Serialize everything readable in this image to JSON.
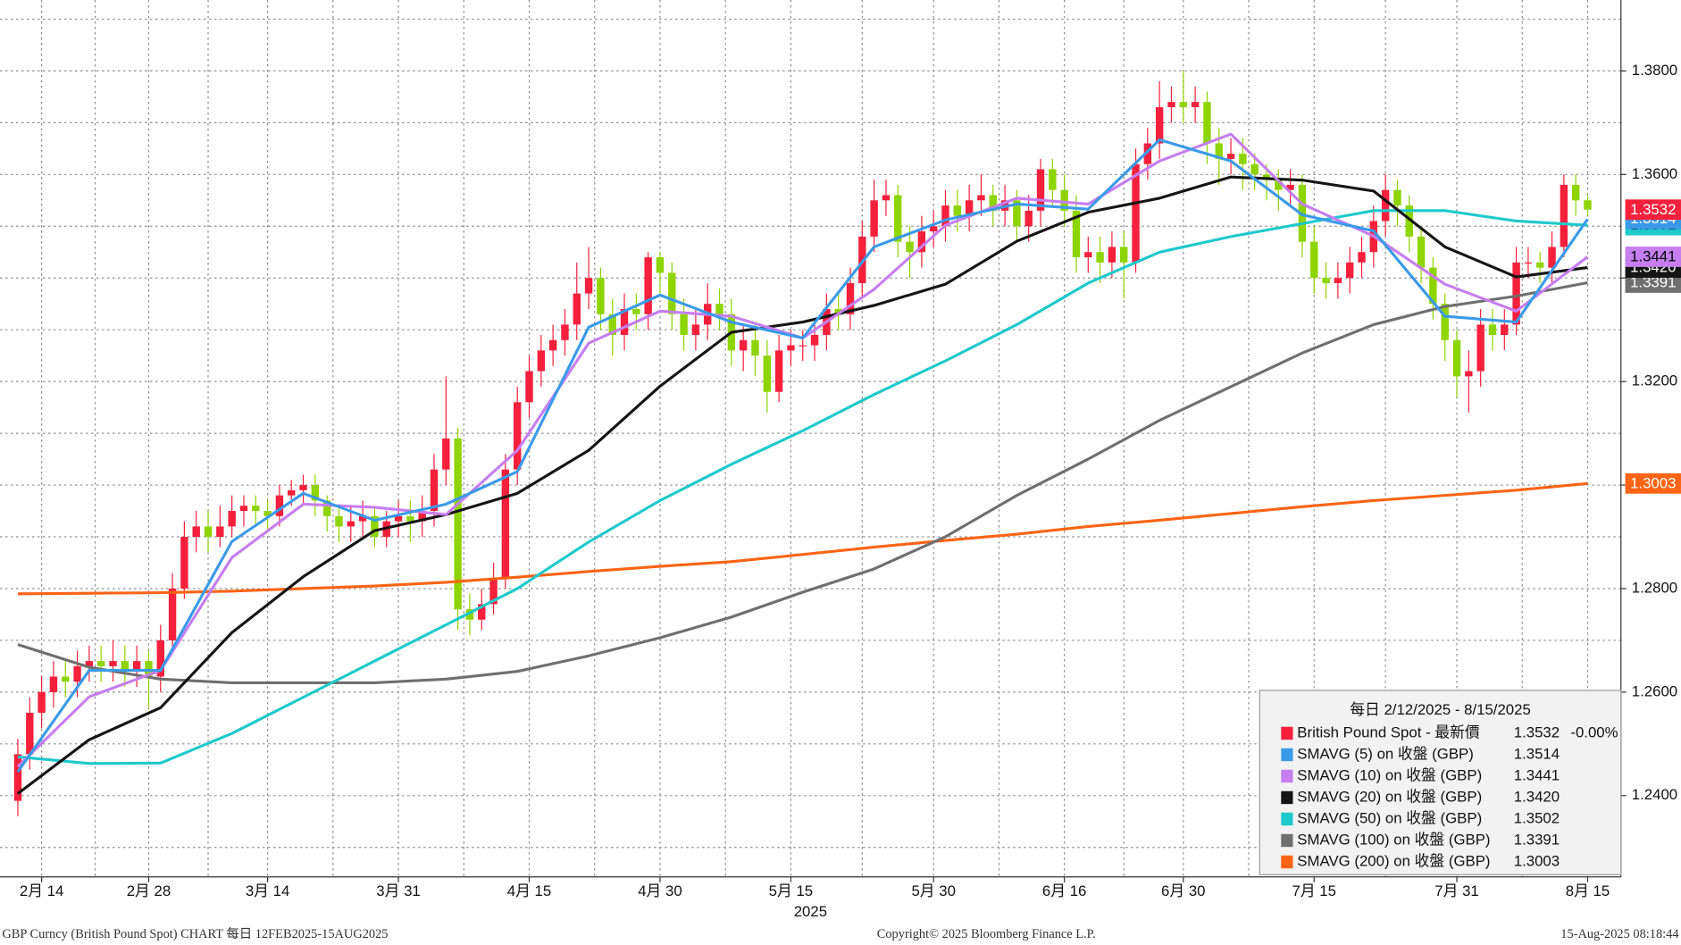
{
  "chart_data": {
    "type": "candlestick",
    "xlim": [
      -1.5,
      134.8
    ],
    "ylim": [
      1.2243,
      1.3937
    ],
    "yticks": [
      {
        "value": 1.24,
        "label": "1.2400"
      },
      {
        "value": 1.26,
        "label": "1.2600"
      },
      {
        "value": 1.28,
        "label": "1.2800"
      },
      {
        "value": 1.3,
        "label": "1.3000"
      },
      {
        "value": 1.32,
        "label": "1.3200"
      },
      {
        "value": 1.34,
        "label": "1.3400"
      },
      {
        "value": 1.36,
        "label": "1.3600"
      },
      {
        "value": 1.38,
        "label": "1.3800"
      }
    ],
    "xticks": [
      {
        "value": 2,
        "label": "2月 14"
      },
      {
        "value": 11,
        "label": "2月 28"
      },
      {
        "value": 21,
        "label": "3月 14"
      },
      {
        "value": 32,
        "label": "3月 31"
      },
      {
        "value": 43,
        "label": "4月 15"
      },
      {
        "value": 54,
        "label": "4月 30"
      },
      {
        "value": 65,
        "label": "5月 15"
      },
      {
        "value": 77,
        "label": "5月 30"
      },
      {
        "value": 88,
        "label": "6月 16"
      },
      {
        "value": 98,
        "label": "6月 30"
      },
      {
        "value": 109,
        "label": "7月 15"
      },
      {
        "value": 121,
        "label": "7月 31"
      },
      {
        "value": 132,
        "label": "8月 15"
      }
    ],
    "xlabel": "2025",
    "grid": true,
    "legend": "lower right",
    "legend_title": "每日 2/12/2025 - 8/15/2025",
    "footer_left": "GBP Curncy (British Pound Spot) CHART  每日 12FEB2025-15AUG2025",
    "footer_center": "Copyright© 2025 Bloomberg Finance L.P.",
    "footer_right": "15-Aug-2025 08:18:44",
    "candles": {
      "name": "British Pound Spot - 最新價",
      "change": "-0.00%",
      "up_color": "#f4203c",
      "down_color": "#8ed400",
      "ohlc": [
        [
          1.239,
          1.251,
          1.236,
          1.248
        ],
        [
          1.248,
          1.259,
          1.245,
          1.256
        ],
        [
          1.256,
          1.263,
          1.253,
          1.26
        ],
        [
          1.26,
          1.266,
          1.257,
          1.263
        ],
        [
          1.263,
          1.266,
          1.259,
          1.262
        ],
        [
          1.262,
          1.268,
          1.259,
          1.265
        ],
        [
          1.265,
          1.269,
          1.262,
          1.266
        ],
        [
          1.266,
          1.269,
          1.262,
          1.265
        ],
        [
          1.265,
          1.27,
          1.262,
          1.266
        ],
        [
          1.266,
          1.269,
          1.261,
          1.264
        ],
        [
          1.264,
          1.269,
          1.261,
          1.266
        ],
        [
          1.266,
          1.268,
          1.257,
          1.263
        ],
        [
          1.263,
          1.273,
          1.26,
          1.27
        ],
        [
          1.27,
          1.283,
          1.268,
          1.28
        ],
        [
          1.28,
          1.293,
          1.278,
          1.29
        ],
        [
          1.29,
          1.295,
          1.287,
          1.292
        ],
        [
          1.292,
          1.295,
          1.287,
          1.29
        ],
        [
          1.29,
          1.296,
          1.288,
          1.292
        ],
        [
          1.292,
          1.298,
          1.29,
          1.295
        ],
        [
          1.295,
          1.298,
          1.292,
          1.296
        ],
        [
          1.296,
          1.298,
          1.292,
          1.295
        ],
        [
          1.295,
          1.297,
          1.291,
          1.294
        ],
        [
          1.294,
          1.3,
          1.292,
          1.298
        ],
        [
          1.298,
          1.301,
          1.296,
          1.299
        ],
        [
          1.299,
          1.302,
          1.296,
          1.3
        ],
        [
          1.3,
          1.302,
          1.294,
          1.297
        ],
        [
          1.297,
          1.298,
          1.291,
          1.294
        ],
        [
          1.294,
          1.296,
          1.289,
          1.292
        ],
        [
          1.292,
          1.296,
          1.289,
          1.293
        ],
        [
          1.293,
          1.297,
          1.29,
          1.294
        ],
        [
          1.294,
          1.296,
          1.288,
          1.29
        ],
        [
          1.29,
          1.295,
          1.288,
          1.293
        ],
        [
          1.293,
          1.297,
          1.29,
          1.294
        ],
        [
          1.294,
          1.297,
          1.289,
          1.293
        ],
        [
          1.293,
          1.298,
          1.29,
          1.295
        ],
        [
          1.295,
          1.306,
          1.292,
          1.303
        ],
        [
          1.303,
          1.321,
          1.3,
          1.309
        ],
        [
          1.309,
          1.311,
          1.272,
          1.276
        ],
        [
          1.276,
          1.279,
          1.271,
          1.274
        ],
        [
          1.274,
          1.28,
          1.272,
          1.277
        ],
        [
          1.277,
          1.285,
          1.275,
          1.282
        ],
        [
          1.282,
          1.306,
          1.28,
          1.303
        ],
        [
          1.303,
          1.319,
          1.3,
          1.316
        ],
        [
          1.316,
          1.325,
          1.313,
          1.322
        ],
        [
          1.322,
          1.329,
          1.319,
          1.326
        ],
        [
          1.326,
          1.331,
          1.323,
          1.328
        ],
        [
          1.328,
          1.334,
          1.325,
          1.331
        ],
        [
          1.331,
          1.343,
          1.328,
          1.337
        ],
        [
          1.337,
          1.346,
          1.334,
          1.34
        ],
        [
          1.34,
          1.342,
          1.33,
          1.333
        ],
        [
          1.333,
          1.336,
          1.325,
          1.329
        ],
        [
          1.329,
          1.337,
          1.326,
          1.334
        ],
        [
          1.334,
          1.337,
          1.33,
          1.333
        ],
        [
          1.333,
          1.345,
          1.33,
          1.344
        ],
        [
          1.344,
          1.345,
          1.337,
          1.341
        ],
        [
          1.341,
          1.343,
          1.33,
          1.333
        ],
        [
          1.333,
          1.336,
          1.326,
          1.329
        ],
        [
          1.329,
          1.334,
          1.326,
          1.331
        ],
        [
          1.331,
          1.339,
          1.328,
          1.335
        ],
        [
          1.335,
          1.338,
          1.33,
          1.333
        ],
        [
          1.333,
          1.336,
          1.323,
          1.326
        ],
        [
          1.326,
          1.331,
          1.322,
          1.328
        ],
        [
          1.328,
          1.331,
          1.321,
          1.325
        ],
        [
          1.325,
          1.328,
          1.314,
          1.318
        ],
        [
          1.318,
          1.329,
          1.316,
          1.326
        ],
        [
          1.326,
          1.33,
          1.323,
          1.327
        ],
        [
          1.327,
          1.33,
          1.324,
          1.327
        ],
        [
          1.327,
          1.332,
          1.324,
          1.329
        ],
        [
          1.329,
          1.337,
          1.326,
          1.334
        ],
        [
          1.334,
          1.337,
          1.33,
          1.333
        ],
        [
          1.333,
          1.342,
          1.33,
          1.339
        ],
        [
          1.339,
          1.351,
          1.336,
          1.348
        ],
        [
          1.348,
          1.359,
          1.345,
          1.355
        ],
        [
          1.355,
          1.359,
          1.352,
          1.356
        ],
        [
          1.356,
          1.358,
          1.344,
          1.347
        ],
        [
          1.347,
          1.35,
          1.34,
          1.345
        ],
        [
          1.345,
          1.352,
          1.342,
          1.349
        ],
        [
          1.349,
          1.353,
          1.346,
          1.35
        ],
        [
          1.35,
          1.357,
          1.347,
          1.354
        ],
        [
          1.354,
          1.357,
          1.349,
          1.352
        ],
        [
          1.352,
          1.358,
          1.349,
          1.355
        ],
        [
          1.355,
          1.36,
          1.352,
          1.356
        ],
        [
          1.356,
          1.358,
          1.35,
          1.353
        ],
        [
          1.353,
          1.358,
          1.35,
          1.355
        ],
        [
          1.355,
          1.357,
          1.347,
          1.35
        ],
        [
          1.35,
          1.356,
          1.347,
          1.353
        ],
        [
          1.353,
          1.363,
          1.35,
          1.361
        ],
        [
          1.361,
          1.363,
          1.354,
          1.357
        ],
        [
          1.357,
          1.36,
          1.35,
          1.353
        ],
        [
          1.353,
          1.356,
          1.341,
          1.344
        ],
        [
          1.344,
          1.348,
          1.341,
          1.345
        ],
        [
          1.345,
          1.348,
          1.339,
          1.343
        ],
        [
          1.343,
          1.349,
          1.34,
          1.346
        ],
        [
          1.346,
          1.349,
          1.336,
          1.343
        ],
        [
          1.343,
          1.365,
          1.341,
          1.362
        ],
        [
          1.362,
          1.369,
          1.359,
          1.366
        ],
        [
          1.366,
          1.378,
          1.363,
          1.373
        ],
        [
          1.373,
          1.377,
          1.37,
          1.374
        ],
        [
          1.374,
          1.38,
          1.37,
          1.373
        ],
        [
          1.373,
          1.377,
          1.37,
          1.374
        ],
        [
          1.374,
          1.376,
          1.362,
          1.366
        ],
        [
          1.366,
          1.369,
          1.358,
          1.363
        ],
        [
          1.363,
          1.367,
          1.36,
          1.364
        ],
        [
          1.364,
          1.367,
          1.357,
          1.362
        ],
        [
          1.362,
          1.364,
          1.357,
          1.36
        ],
        [
          1.36,
          1.362,
          1.355,
          1.359
        ],
        [
          1.359,
          1.361,
          1.353,
          1.357
        ],
        [
          1.357,
          1.361,
          1.354,
          1.358
        ],
        [
          1.358,
          1.36,
          1.344,
          1.347
        ],
        [
          1.347,
          1.35,
          1.337,
          1.34
        ],
        [
          1.34,
          1.343,
          1.336,
          1.339
        ],
        [
          1.339,
          1.343,
          1.336,
          1.34
        ],
        [
          1.34,
          1.346,
          1.337,
          1.343
        ],
        [
          1.343,
          1.348,
          1.34,
          1.345
        ],
        [
          1.345,
          1.354,
          1.342,
          1.351
        ],
        [
          1.351,
          1.36,
          1.348,
          1.357
        ],
        [
          1.357,
          1.359,
          1.35,
          1.354
        ],
        [
          1.354,
          1.356,
          1.345,
          1.348
        ],
        [
          1.348,
          1.35,
          1.339,
          1.342
        ],
        [
          1.342,
          1.344,
          1.332,
          1.335
        ],
        [
          1.335,
          1.337,
          1.324,
          1.328
        ],
        [
          1.328,
          1.33,
          1.317,
          1.321
        ],
        [
          1.321,
          1.326,
          1.314,
          1.322
        ],
        [
          1.322,
          1.334,
          1.319,
          1.331
        ],
        [
          1.331,
          1.334,
          1.326,
          1.329
        ],
        [
          1.329,
          1.334,
          1.326,
          1.331
        ],
        [
          1.331,
          1.346,
          1.329,
          1.343
        ],
        [
          1.343,
          1.346,
          1.34,
          1.343
        ],
        [
          1.343,
          1.345,
          1.339,
          1.342
        ],
        [
          1.342,
          1.349,
          1.339,
          1.346
        ],
        [
          1.346,
          1.36,
          1.344,
          1.358
        ],
        [
          1.358,
          1.36,
          1.352,
          1.355
        ],
        [
          1.355,
          1.356,
          1.352,
          1.3532
        ]
      ]
    },
    "series": [
      {
        "name": "SMAVG (5)  on 收盤 (GBP)",
        "color": "#3a9ae8",
        "last_label": "1.3514",
        "x": [
          0,
          6,
          12,
          18,
          24,
          30,
          36,
          42,
          48,
          54,
          60,
          66,
          72,
          78,
          84,
          90,
          96,
          102,
          108,
          114,
          120,
          126,
          132
        ],
        "values": [
          1.2446,
          1.2642,
          1.2642,
          1.2891,
          1.2984,
          1.2932,
          1.2963,
          1.3026,
          1.3305,
          1.3367,
          1.3315,
          1.3284,
          1.346,
          1.3512,
          1.3543,
          1.3533,
          1.3667,
          1.3626,
          1.3522,
          1.3491,
          1.3326,
          1.3315,
          1.3514
        ]
      },
      {
        "name": "SMAVG (10)  on 收盤 (GBP)",
        "color": "#c67ef0",
        "last_label": "1.3441",
        "x": [
          0,
          6,
          12,
          18,
          24,
          30,
          36,
          42,
          48,
          54,
          60,
          66,
          72,
          78,
          84,
          90,
          96,
          102,
          108,
          114,
          120,
          126,
          132
        ],
        "values": [
          1.2456,
          1.2591,
          1.2642,
          1.286,
          1.2963,
          1.2957,
          1.2943,
          1.3067,
          1.3274,
          1.3336,
          1.3326,
          1.3284,
          1.3378,
          1.3502,
          1.3554,
          1.3543,
          1.3626,
          1.3678,
          1.3543,
          1.3481,
          1.3388,
          1.3336,
          1.3441
        ]
      },
      {
        "name": "SMAVG (20)  on 收盤 (GBP)",
        "color": "#151515",
        "last_label": "1.3420",
        "x": [
          0,
          6,
          12,
          18,
          24,
          30,
          36,
          42,
          48,
          54,
          60,
          66,
          72,
          78,
          84,
          90,
          96,
          102,
          108,
          114,
          120,
          126,
          132
        ],
        "values": [
          1.2404,
          1.2508,
          1.257,
          1.2715,
          1.2823,
          1.2912,
          1.2943,
          1.2984,
          1.3067,
          1.3191,
          1.3295,
          1.3315,
          1.3347,
          1.3388,
          1.3471,
          1.3527,
          1.3554,
          1.3595,
          1.3589,
          1.3568,
          1.346,
          1.3402,
          1.342
        ]
      },
      {
        "name": "SMAVG (50)  on 收盤 (GBP)",
        "color": "#1ec9cc",
        "last_label": "1.3502",
        "x": [
          0,
          6,
          12,
          18,
          24,
          30,
          36,
          42,
          48,
          54,
          60,
          66,
          72,
          78,
          84,
          90,
          96,
          102,
          108,
          114,
          120,
          126,
          132
        ],
        "values": [
          1.2475,
          1.2462,
          1.2463,
          1.252,
          1.259,
          1.266,
          1.273,
          1.28,
          1.289,
          1.297,
          1.304,
          1.3105,
          1.3175,
          1.324,
          1.331,
          1.339,
          1.345,
          1.348,
          1.3505,
          1.353,
          1.353,
          1.351,
          1.3502
        ]
      },
      {
        "name": "SMAVG (100)  on 收盤 (GBP)",
        "color": "#6f6f6f",
        "last_label": "1.3391",
        "x": [
          0,
          6,
          12,
          18,
          24,
          30,
          36,
          42,
          48,
          54,
          60,
          66,
          72,
          78,
          84,
          90,
          96,
          102,
          108,
          114,
          120,
          126,
          132
        ],
        "values": [
          1.2692,
          1.2648,
          1.2625,
          1.2618,
          1.2618,
          1.2618,
          1.2625,
          1.264,
          1.267,
          1.2705,
          1.2745,
          1.2793,
          1.2838,
          1.29,
          1.298,
          1.305,
          1.3125,
          1.319,
          1.3255,
          1.331,
          1.3345,
          1.3365,
          1.3391
        ]
      },
      {
        "name": "SMAVG (200)  on 收盤 (GBP)",
        "color": "#fb6414",
        "last_label": "1.3003",
        "x": [
          0,
          6,
          12,
          18,
          24,
          30,
          36,
          42,
          48,
          54,
          60,
          66,
          72,
          78,
          84,
          90,
          96,
          102,
          108,
          114,
          120,
          126,
          132
        ],
        "values": [
          1.279,
          1.2791,
          1.2792,
          1.2795,
          1.28,
          1.2805,
          1.2812,
          1.2822,
          1.2833,
          1.2843,
          1.2852,
          1.2866,
          1.288,
          1.2893,
          1.2905,
          1.292,
          1.2932,
          1.2945,
          1.2958,
          1.297,
          1.298,
          1.299,
          1.3003
        ]
      }
    ]
  }
}
